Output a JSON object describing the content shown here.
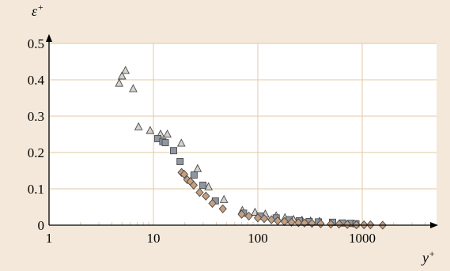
{
  "colors": {
    "background": "#f3e8d9",
    "plot_background": "#ffffff",
    "gridline": "#e2c9a6",
    "axis": "#000000",
    "triangle_fill": "#d5d1cc",
    "square_fill": "#8f97a0",
    "diamond_fill": "#c59f80",
    "marker_stroke": "#4a4a4a"
  },
  "chart_data": {
    "type": "scatter",
    "xscale": "log",
    "xlim": [
      1,
      5000
    ],
    "ylim": [
      0,
      0.5
    ],
    "grid": true,
    "xlabel": "y",
    "xlabel_sup": "+",
    "ylabel": "ε",
    "ylabel_sup": "+",
    "x_ticks": [
      1,
      10,
      100,
      1000
    ],
    "x_tick_labels": [
      "1",
      "10",
      "100",
      "1000"
    ],
    "y_ticks": [
      0,
      0.1,
      0.2,
      0.3,
      0.4,
      0.5
    ],
    "y_tick_labels": [
      "0",
      "0.1",
      "0.2",
      "0.3",
      "0.4",
      "0.5"
    ],
    "series": [
      {
        "marker": "triangle",
        "points": [
          [
            4.7,
            0.39
          ],
          [
            5.0,
            0.41
          ],
          [
            5.4,
            0.425
          ],
          [
            6.4,
            0.375
          ],
          [
            7.2,
            0.27
          ],
          [
            9.3,
            0.26
          ],
          [
            11.7,
            0.25
          ],
          [
            13.6,
            0.25
          ],
          [
            18.5,
            0.225
          ],
          [
            26.5,
            0.155
          ],
          [
            33.7,
            0.105
          ],
          [
            47.4,
            0.07
          ],
          [
            71,
            0.04
          ],
          [
            94,
            0.035
          ],
          [
            118,
            0.03
          ],
          [
            150,
            0.025
          ],
          [
            182,
            0.02
          ],
          [
            220,
            0.015
          ],
          [
            265,
            0.013
          ],
          [
            320,
            0.011
          ],
          [
            390,
            0.01
          ]
        ]
      },
      {
        "marker": "square",
        "points": [
          [
            11.0,
            0.238
          ],
          [
            12.3,
            0.23
          ],
          [
            13.0,
            0.227
          ],
          [
            15.6,
            0.205
          ],
          [
            18.0,
            0.175
          ],
          [
            24.5,
            0.138
          ],
          [
            29.8,
            0.11
          ],
          [
            39.2,
            0.067
          ],
          [
            73,
            0.033
          ],
          [
            105,
            0.025
          ],
          [
            150,
            0.02
          ],
          [
            200,
            0.015
          ],
          [
            250,
            0.012
          ],
          [
            310,
            0.01
          ],
          [
            380,
            0.009
          ],
          [
            520,
            0.008
          ],
          [
            650,
            0.006
          ],
          [
            780,
            0.005
          ],
          [
            870,
            0.004
          ]
        ]
      },
      {
        "marker": "diamond",
        "points": [
          [
            18.6,
            0.145
          ],
          [
            19.7,
            0.14
          ],
          [
            21.1,
            0.125
          ],
          [
            22.6,
            0.12
          ],
          [
            24.3,
            0.11
          ],
          [
            27.7,
            0.09
          ],
          [
            31.8,
            0.08
          ],
          [
            36.7,
            0.06
          ],
          [
            46.2,
            0.045
          ],
          [
            70,
            0.03
          ],
          [
            82,
            0.025
          ],
          [
            100,
            0.02
          ],
          [
            115,
            0.018
          ],
          [
            135,
            0.015
          ],
          [
            155,
            0.012
          ],
          [
            180,
            0.01
          ],
          [
            210,
            0.008
          ],
          [
            245,
            0.007
          ],
          [
            280,
            0.006
          ],
          [
            330,
            0.005
          ],
          [
            400,
            0.004
          ],
          [
            500,
            0.003
          ],
          [
            600,
            0.003
          ],
          [
            720,
            0.002
          ],
          [
            880,
            0.001
          ],
          [
            1040,
            0.001
          ],
          [
            1200,
            0.001
          ],
          [
            1570,
            0.0
          ]
        ]
      }
    ]
  }
}
